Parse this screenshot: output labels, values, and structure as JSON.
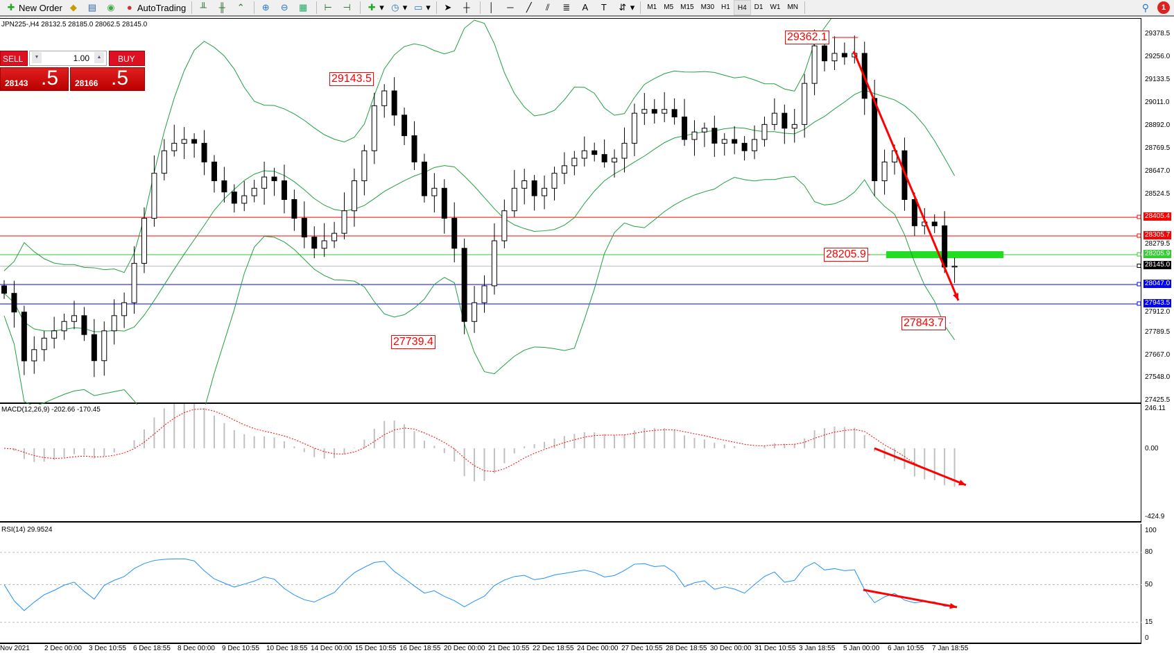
{
  "toolbar": {
    "new_order": "New Order",
    "auto_trading": "AutoTrading",
    "timeframes": [
      "M1",
      "M5",
      "M15",
      "M30",
      "H1",
      "H4",
      "D1",
      "W1",
      "MN"
    ],
    "active_timeframe": "H4",
    "notifications": "1"
  },
  "chart": {
    "title": "JPN225-,H4  28132.5 28185.0 28062.5 28145.0",
    "trade_panel": {
      "sell": "SELL",
      "buy": "BUY",
      "lot": "1.00",
      "bid_main": "28143",
      "bid_big": ".5",
      "ask_main": "28166",
      "ask_big": ".5",
      "color": "#d11a1a"
    },
    "price_axis": [
      "29378.5",
      "29256.0",
      "29133.5",
      "29011.0",
      "28892.0",
      "28769.5",
      "28647.0",
      "28524.5",
      "28279.5",
      "27912.0",
      "27789.5",
      "27667.0",
      "27548.0",
      "27425.5"
    ],
    "levels": [
      {
        "price": "28405.4",
        "color": "#ff0000"
      },
      {
        "price": "28305.7",
        "color": "#ff0000"
      },
      {
        "price": "28205.9",
        "color": "#33cc33"
      },
      {
        "price": "28145.0",
        "color": "#000000",
        "line": "#c0c0c0"
      },
      {
        "price": "28047.0",
        "color": "#0000ff"
      },
      {
        "price": "27943.5",
        "color": "#0000ff"
      }
    ],
    "price_labels": [
      "29362.1",
      "29143.5",
      "28205.9",
      "27739.4",
      "27843.7"
    ],
    "closes": [
      28000,
      27900,
      27640,
      27700,
      27761,
      27800,
      27850,
      27881,
      27780,
      27641,
      27800,
      27881,
      27950,
      28160,
      28400,
      28640,
      28760,
      28800,
      28820,
      28800,
      28700,
      28600,
      28540,
      28480,
      28520,
      28560,
      28620,
      28600,
      28500,
      28400,
      28300,
      28240,
      28280,
      28320,
      28440,
      28600,
      28760,
      29000,
      29079,
      28950,
      28840,
      28700,
      28520,
      28560,
      28400,
      28240,
      27850,
      27950,
      28040,
      28280,
      28440,
      28560,
      28600,
      28520,
      28560,
      28640,
      28680,
      28720,
      28760,
      28740,
      28700,
      28720,
      28800,
      28960,
      28980,
      28960,
      28980,
      28940,
      28820,
      28860,
      28880,
      28800,
      28820,
      28800,
      28760,
      28820,
      28900,
      28960,
      28880,
      28900,
      29119,
      29319,
      29239,
      29279,
      29260,
      29279,
      29039,
      28600,
      28700,
      28760,
      28500,
      28360,
      28380,
      28360,
      28140,
      28145
    ],
    "band_color": "#20a040",
    "trend_color": "#ff0000"
  },
  "macd": {
    "title": "MACD(12,26,9) -202.66 -170.45",
    "axis": [
      "246.11",
      "0.00",
      "-424.9"
    ],
    "signal_color": "#ff0000",
    "hist_color": "#c0c0c0"
  },
  "rsi": {
    "title": "RSI(14) 29.9524",
    "axis": [
      "100",
      "80",
      "50",
      "15",
      "0"
    ],
    "line_color": "#1e90ff"
  },
  "time_axis": [
    "Nov 2021",
    "2 Dec 00:00",
    "3 Dec 10:55",
    "6 Dec 18:55",
    "8 Dec 00:00",
    "9 Dec 10:55",
    "10 Dec 18:55",
    "14 Dec 00:00",
    "15 Dec 10:55",
    "16 Dec 18:55",
    "20 Dec 00:00",
    "21 Dec 10:55",
    "22 Dec 18:55",
    "24 Dec 00:00",
    "27 Dec 10:55",
    "28 Dec 18:55",
    "30 Dec 00:00",
    "31 Dec 10:55",
    "3 Jan 18:55",
    "5 Jan 00:00",
    "6 Jan 10:55",
    "7 Jan 18:55"
  ]
}
